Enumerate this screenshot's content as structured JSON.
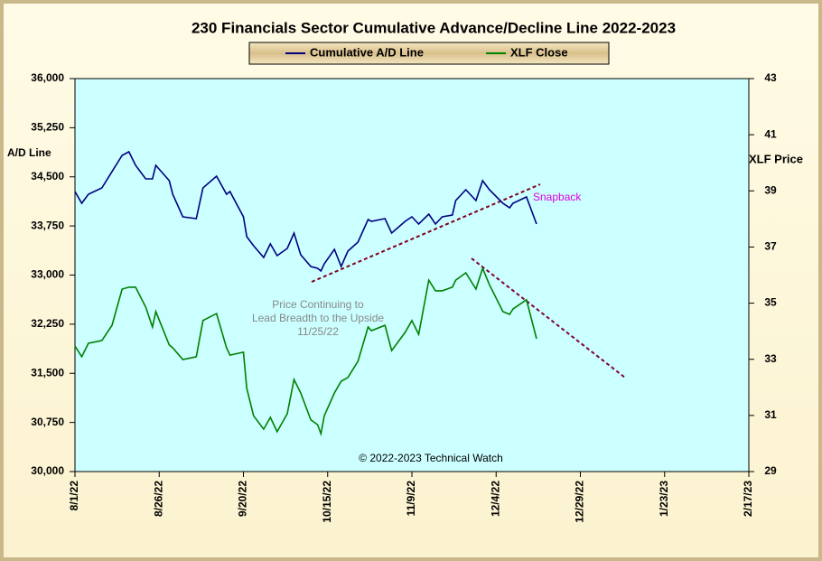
{
  "chart_data": {
    "type": "line",
    "title": "230 Financials  Sector Cumulative  Advance/Decline  Line 2022-2023",
    "ylabel": "A/D Line",
    "y2label": "XLF Price",
    "annotations": [
      "Snapback",
      "Price Continuing to",
      "Lead Breadth to the Upside",
      "11/25/22",
      "© 2022-2023  Technical Watch"
    ],
    "x": [
      "2022-08-01",
      "2022-08-03",
      "2022-08-05",
      "2022-08-09",
      "2022-08-12",
      "2022-08-15",
      "2022-08-17",
      "2022-08-19",
      "2022-08-22",
      "2022-08-24",
      "2022-08-25",
      "2022-08-29",
      "2022-08-30",
      "2022-09-02",
      "2022-09-06",
      "2022-09-08",
      "2022-09-12",
      "2022-09-15",
      "2022-09-16",
      "2022-09-20",
      "2022-09-21",
      "2022-09-23",
      "2022-09-26",
      "2022-09-28",
      "2022-09-30",
      "2022-10-03",
      "2022-10-05",
      "2022-10-07",
      "2022-10-10",
      "2022-10-12",
      "2022-10-13",
      "2022-10-14",
      "2022-10-17",
      "2022-10-19",
      "2022-10-21",
      "2022-10-24",
      "2022-10-27",
      "2022-10-28",
      "2022-11-01",
      "2022-11-03",
      "2022-11-07",
      "2022-11-09",
      "2022-11-11",
      "2022-11-14",
      "2022-11-16",
      "2022-11-18",
      "2022-11-21",
      "2022-11-22",
      "2022-11-25",
      "2022-11-28",
      "2022-11-30",
      "2022-12-02",
      "2022-12-06",
      "2022-12-08",
      "2022-12-09",
      "2022-12-13",
      "2022-12-16"
    ],
    "series": [
      {
        "name": "Cumulative A/D Line",
        "color": "#000080",
        "axis": "y",
        "values": [
          34276,
          34097,
          34235,
          34331,
          34580,
          34828,
          34883,
          34676,
          34469,
          34469,
          34676,
          34441,
          34235,
          33890,
          33862,
          34331,
          34510,
          34235,
          34276,
          33890,
          33586,
          33448,
          33269,
          33476,
          33296,
          33407,
          33641,
          33310,
          33131,
          33103,
          33062,
          33172,
          33393,
          33131,
          33365,
          33503,
          33848,
          33821,
          33862,
          33641,
          33821,
          33890,
          33779,
          33931,
          33779,
          33890,
          33917,
          34138,
          34303,
          34138,
          34441,
          34303,
          34097,
          34028,
          34097,
          34193,
          33779
        ]
      },
      {
        "name": "XLF Close",
        "color": "#008000",
        "axis": "y2",
        "values": [
          33.47,
          33.09,
          33.57,
          33.67,
          34.21,
          35.5,
          35.57,
          35.57,
          34.86,
          34.15,
          34.7,
          33.51,
          33.41,
          32.99,
          33.09,
          34.38,
          34.63,
          33.41,
          33.15,
          33.25,
          31.96,
          30.99,
          30.51,
          30.93,
          30.42,
          31.06,
          32.28,
          31.8,
          30.84,
          30.67,
          30.35,
          30.99,
          31.8,
          32.22,
          32.35,
          32.93,
          34.15,
          34.02,
          34.21,
          33.31,
          33.96,
          34.38,
          33.89,
          35.82,
          35.44,
          35.44,
          35.57,
          35.82,
          36.08,
          35.5,
          36.24,
          35.66,
          34.7,
          34.6,
          34.79,
          35.12,
          33.73
        ]
      }
    ],
    "xlim": [
      "2022-08-01",
      "2023-02-17"
    ],
    "xticks": [
      {
        "value": "2022-08-01",
        "label": "8/1/22"
      },
      {
        "value": "2022-08-26",
        "label": "8/26/22"
      },
      {
        "value": "2022-09-20",
        "label": "9/20/22"
      },
      {
        "value": "2022-10-15",
        "label": "10/15/22"
      },
      {
        "value": "2022-11-09",
        "label": "11/9/22"
      },
      {
        "value": "2022-12-04",
        "label": "12/4/22"
      },
      {
        "value": "2022-12-29",
        "label": "12/29/22"
      },
      {
        "value": "2023-01-23",
        "label": "1/23/23"
      },
      {
        "value": "2023-02-17",
        "label": "2/17/23"
      }
    ],
    "ylim": [
      30000,
      36000
    ],
    "yticks": [
      {
        "value": 30000,
        "label": "30,000"
      },
      {
        "value": 30750,
        "label": "30,750"
      },
      {
        "value": 31500,
        "label": "31,500"
      },
      {
        "value": 32250,
        "label": "32,250"
      },
      {
        "value": 33000,
        "label": "33,000"
      },
      {
        "value": 33750,
        "label": "33,750"
      },
      {
        "value": 34500,
        "label": "34,500"
      },
      {
        "value": 35250,
        "label": "35,250"
      },
      {
        "value": 36000,
        "label": "36,000"
      }
    ],
    "y2lim": [
      29,
      43
    ],
    "y2ticks": [
      29,
      31,
      33,
      35,
      37,
      39,
      41,
      43
    ],
    "grid": false,
    "legend": "top",
    "plot_background": "#ccffff"
  }
}
